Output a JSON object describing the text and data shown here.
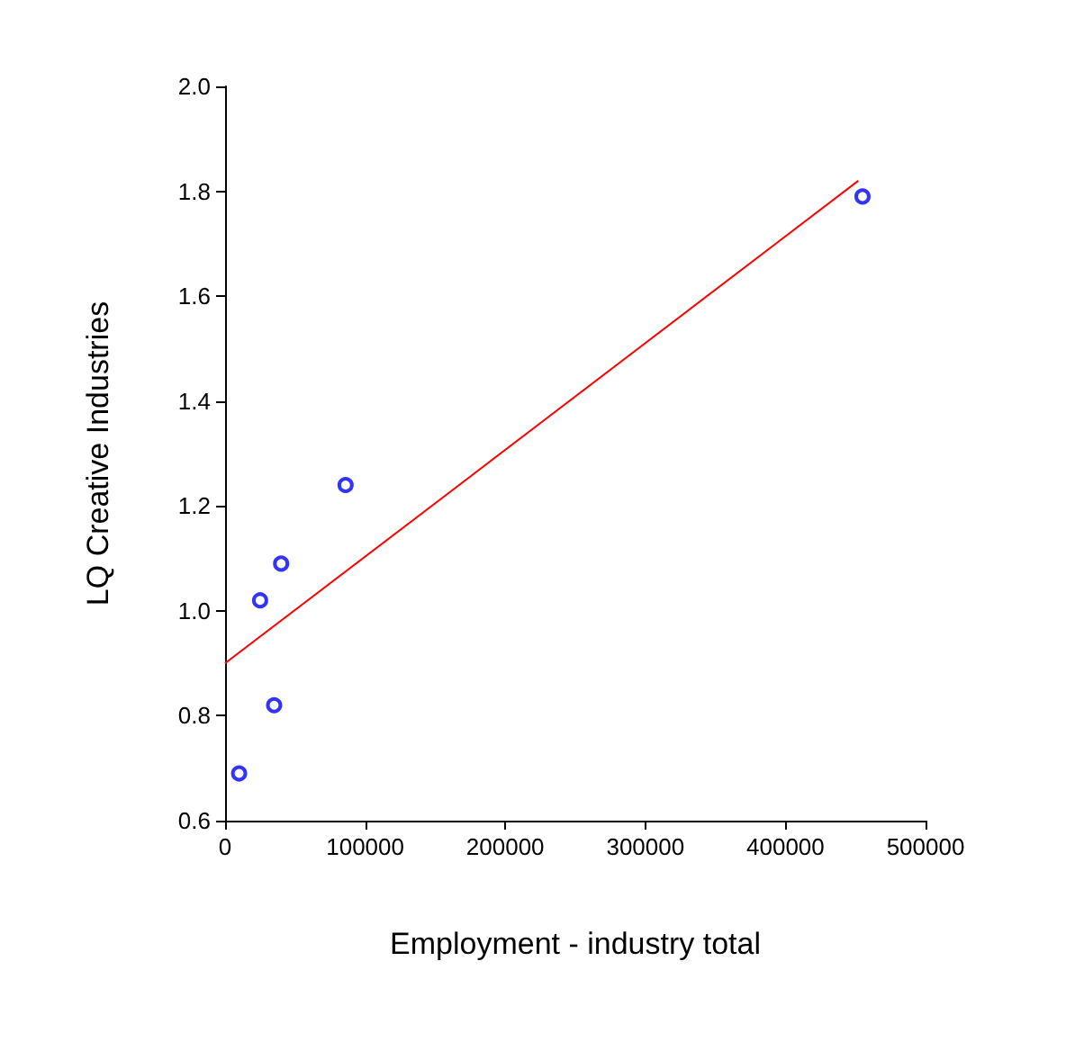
{
  "chart_data": {
    "type": "scatter",
    "xlabel": "Employment - industry total",
    "ylabel": "LQ Creative Industries",
    "xlim": [
      0,
      500000
    ],
    "xticks": [
      0,
      100000,
      200000,
      300000,
      400000,
      500000
    ],
    "ylim": [
      0.6,
      2.0
    ],
    "yticks": [
      {
        "value": 0.6,
        "label": "0.6"
      },
      {
        "value": 0.8,
        "label": "0.8"
      },
      {
        "value": 1.0,
        "label": "1.0"
      },
      {
        "value": 1.2,
        "label": "1.2"
      },
      {
        "value": 1.4,
        "label": "1.4"
      },
      {
        "value": 1.6,
        "label": "1.6"
      },
      {
        "value": 1.8,
        "label": "1.8"
      },
      {
        "value": 2.0,
        "label": "2.0"
      }
    ],
    "grid": false,
    "series": [
      {
        "marker": "circle",
        "color": "#0000ff",
        "x": [
          10000,
          25000,
          35000,
          40000,
          86000,
          455000
        ],
        "values": [
          0.69,
          1.02,
          0.82,
          1.09,
          1.24,
          1.79
        ]
      },
      {
        "type": "line",
        "color": "#ff0000",
        "x": [
          0,
          452000
        ],
        "values": [
          0.9,
          1.82
        ]
      }
    ]
  }
}
